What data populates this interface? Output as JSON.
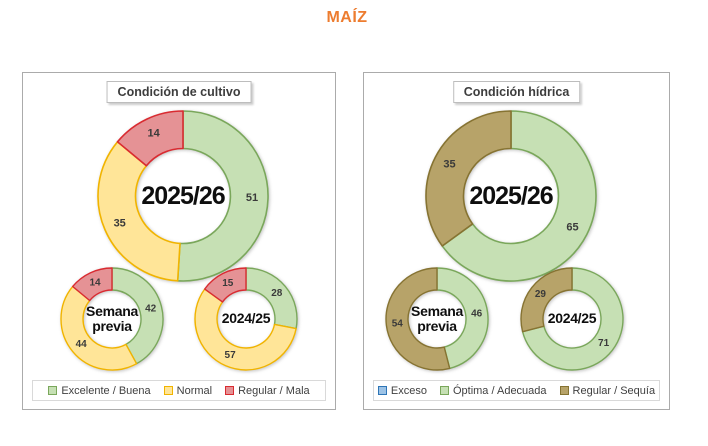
{
  "page_title": "MAÍZ",
  "title_color": "#ed7c2f",
  "series_colors": {
    "Excelente / Buena": {
      "fill": "#c6e0b4",
      "border": "#7aa75b"
    },
    "Normal": {
      "fill": "#ffe598",
      "border": "#f1b400"
    },
    "Regular / Mala": {
      "fill": "#e59295",
      "border": "#d92b31"
    },
    "Exceso": {
      "fill": "#9dc3e6",
      "border": "#2e75b6"
    },
    "Óptima / Adecuada": {
      "fill": "#c6e0b4",
      "border": "#7aa75b"
    },
    "Regular / Sequía": {
      "fill": "#b7a369",
      "border": "#867332"
    }
  },
  "panels": [
    {
      "title": "Condición de cultivo",
      "legend": [
        "Excelente / Buena",
        "Normal",
        "Regular / Mala"
      ]
    },
    {
      "title": "Condición hídrica",
      "legend": [
        "Exceso",
        "Óptima / Adecuada",
        "Regular / Sequía"
      ]
    }
  ],
  "chart_data": [
    {
      "type": "pie",
      "panel_index": 0,
      "panel": "Condición de cultivo",
      "slot": "main",
      "size": "large",
      "title": "2025/26",
      "series": [
        {
          "name": "Excelente / Buena",
          "value": 51
        },
        {
          "name": "Normal",
          "value": 35
        },
        {
          "name": "Regular / Mala",
          "value": 14
        }
      ]
    },
    {
      "type": "pie",
      "panel_index": 0,
      "panel": "Condición de cultivo",
      "slot": "prev_week",
      "size": "small",
      "title": "Semana previa",
      "series": [
        {
          "name": "Excelente / Buena",
          "value": 42
        },
        {
          "name": "Normal",
          "value": 44
        },
        {
          "name": "Regular / Mala",
          "value": 14
        }
      ]
    },
    {
      "type": "pie",
      "panel_index": 0,
      "panel": "Condición de cultivo",
      "slot": "prev_season",
      "size": "small",
      "title": "2024/25",
      "series": [
        {
          "name": "Excelente / Buena",
          "value": 28
        },
        {
          "name": "Normal",
          "value": 57
        },
        {
          "name": "Regular / Mala",
          "value": 15
        }
      ]
    },
    {
      "type": "pie",
      "panel_index": 1,
      "panel": "Condición hídrica",
      "slot": "main",
      "size": "large",
      "title": "2025/26",
      "series": [
        {
          "name": "Exceso",
          "value": 0
        },
        {
          "name": "Óptima / Adecuada",
          "value": 65
        },
        {
          "name": "Regular / Sequía",
          "value": 35
        }
      ]
    },
    {
      "type": "pie",
      "panel_index": 1,
      "panel": "Condición hídrica",
      "slot": "prev_week",
      "size": "small",
      "title": "Semana previa",
      "series": [
        {
          "name": "Exceso",
          "value": 0
        },
        {
          "name": "Óptima / Adecuada",
          "value": 46
        },
        {
          "name": "Regular / Sequía",
          "value": 54
        }
      ]
    },
    {
      "type": "pie",
      "panel_index": 1,
      "panel": "Condición hídrica",
      "slot": "prev_season",
      "size": "small",
      "title": "2024/25",
      "series": [
        {
          "name": "Exceso",
          "value": 0
        },
        {
          "name": "Óptima / Adecuada",
          "value": 71
        },
        {
          "name": "Regular / Sequía",
          "value": 29
        }
      ]
    }
  ]
}
